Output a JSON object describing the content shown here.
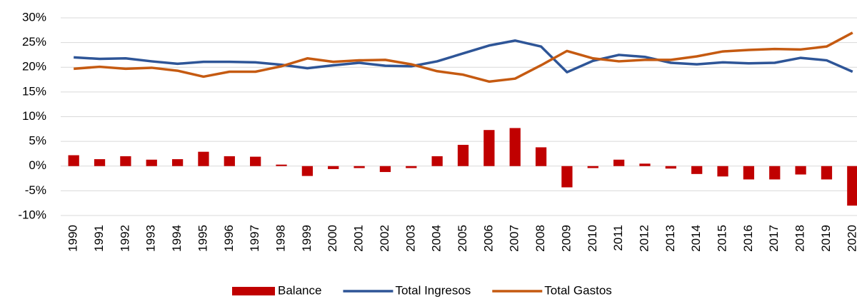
{
  "chart_data": {
    "type": "bar-line",
    "categories": [
      "1990",
      "1991",
      "1992",
      "1993",
      "1994",
      "1995",
      "1996",
      "1997",
      "1998",
      "1999",
      "2000",
      "2001",
      "2002",
      "2003",
      "2004",
      "2005",
      "2006",
      "2007",
      "2008",
      "2009",
      "2010",
      "2011",
      "2012",
      "2013",
      "2014",
      "2015",
      "2016",
      "2017",
      "2018",
      "2019",
      "2020"
    ],
    "series": [
      {
        "name": "Balance",
        "type": "bar",
        "color": "#c00000",
        "values": [
          2.2,
          1.4,
          2.0,
          1.3,
          1.4,
          2.9,
          2.0,
          1.9,
          0.3,
          -2.0,
          -0.6,
          -0.4,
          -1.2,
          -0.4,
          2.0,
          4.3,
          7.3,
          7.7,
          3.8,
          -4.3,
          -0.4,
          1.3,
          0.5,
          -0.5,
          -1.6,
          -2.1,
          -2.7,
          -2.7,
          -1.7,
          -2.7,
          -8.0
        ]
      },
      {
        "name": "Total Ingresos",
        "type": "line",
        "color": "#2e5597",
        "values": [
          22.0,
          21.7,
          21.8,
          21.2,
          20.7,
          21.1,
          21.1,
          21.0,
          20.5,
          19.8,
          20.4,
          20.9,
          20.3,
          20.2,
          21.2,
          22.8,
          24.4,
          25.4,
          24.2,
          19.0,
          21.3,
          22.5,
          22.1,
          20.9,
          20.6,
          21.0,
          20.8,
          20.9,
          21.9,
          21.4,
          19.1
        ]
      },
      {
        "name": "Total Gastos",
        "type": "line",
        "color": "#c55a11",
        "values": [
          19.7,
          20.1,
          19.7,
          19.9,
          19.3,
          18.1,
          19.1,
          19.1,
          20.2,
          21.8,
          21.1,
          21.4,
          21.5,
          20.6,
          19.2,
          18.5,
          17.1,
          17.7,
          20.4,
          23.3,
          21.8,
          21.2,
          21.5,
          21.5,
          22.2,
          23.2,
          23.5,
          23.7,
          23.6,
          24.2,
          27.0
        ]
      }
    ],
    "ylim": [
      -10,
      30
    ],
    "yticks": [
      {
        "value": -10,
        "label": "-10%"
      },
      {
        "value": -5,
        "label": "-5%"
      },
      {
        "value": 0,
        "label": "0%"
      },
      {
        "value": 5,
        "label": "5%"
      },
      {
        "value": 10,
        "label": "10%"
      },
      {
        "value": 15,
        "label": "15%"
      },
      {
        "value": 20,
        "label": "20%"
      },
      {
        "value": 25,
        "label": "25%"
      },
      {
        "value": 30,
        "label": "30%"
      }
    ],
    "grid": true,
    "legend": "bottom"
  }
}
